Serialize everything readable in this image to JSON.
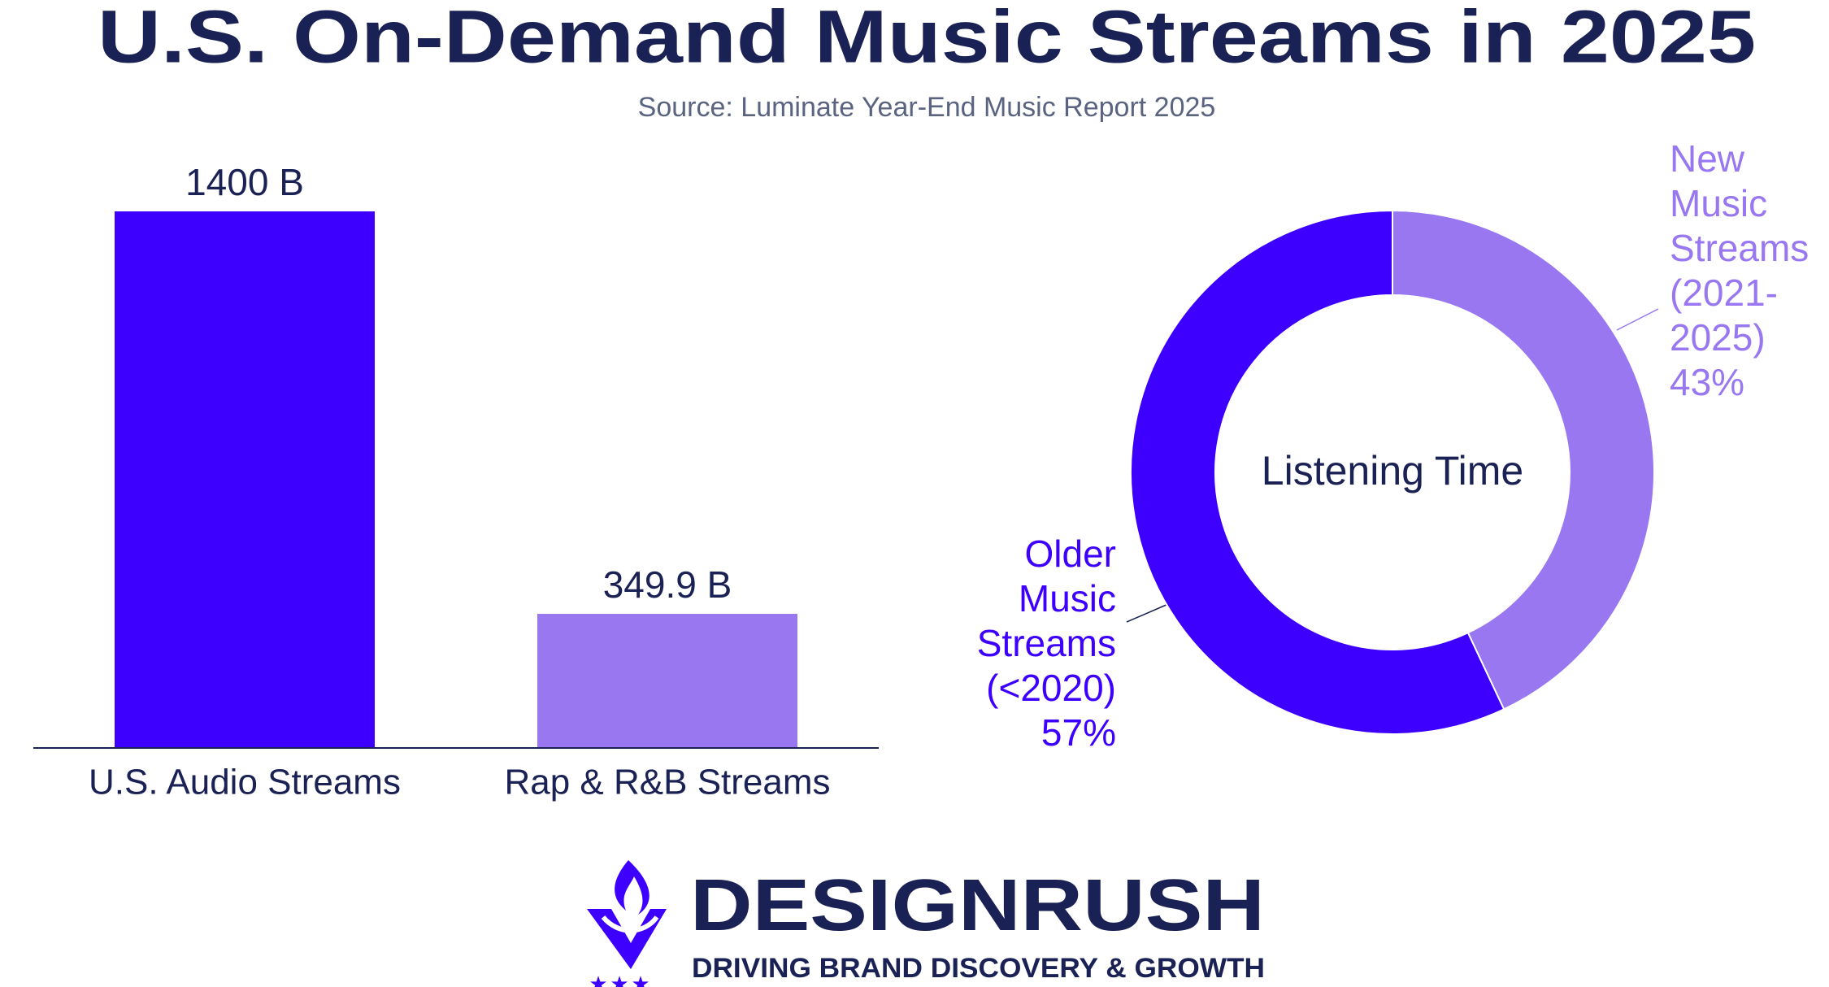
{
  "header": {
    "title": "U.S. On-Demand Music Streams in 2025",
    "subtitle": "Source: Luminate Year-End Music Report 2025"
  },
  "chart_data": [
    {
      "type": "bar",
      "categories": [
        "U.S. Audio Streams",
        "Rap & R&B Streams"
      ],
      "values": [
        1400,
        349.9
      ],
      "value_labels": [
        "1400 B",
        "349.9 B"
      ],
      "colors": [
        "#3d00ff",
        "#9877f0"
      ],
      "ylim": [
        0,
        1400
      ]
    },
    {
      "type": "pie",
      "center_label": "Listening Time",
      "categories": [
        "New Music Streams (2021-2025)",
        "Older Music Streams (<2020)"
      ],
      "values": [
        43,
        57
      ],
      "value_labels": [
        "43%",
        "57%"
      ],
      "colors": [
        "#9877f0",
        "#3d00ff"
      ]
    }
  ],
  "branding": {
    "name": "DESIGNRUSH",
    "tagline": "DRIVING BRAND DISCOVERY & GROWTH"
  }
}
